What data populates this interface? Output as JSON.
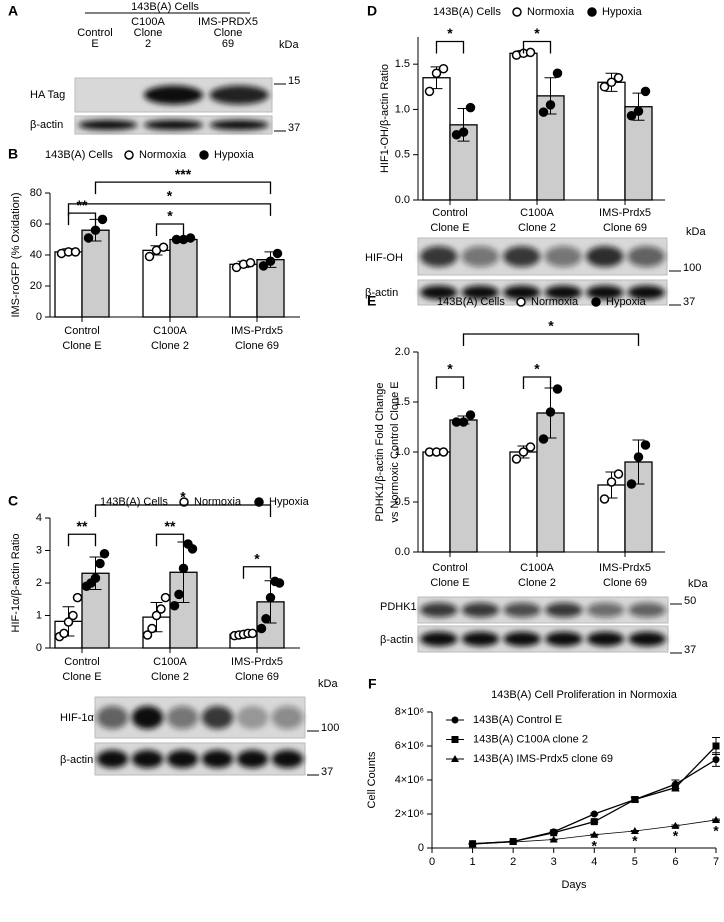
{
  "panel_labels": [
    "A",
    "B",
    "C",
    "D",
    "E",
    "F"
  ],
  "blots": [
    {
      "header": "143B(A) Cells",
      "columns": [
        [
          "Control",
          "E"
        ],
        [
          "C100A",
          "Clone",
          "2"
        ],
        [
          "IMS-PRDX5",
          "Clone",
          "69"
        ]
      ],
      "unit": "kDa",
      "rows": [
        "HA Tag",
        "β-actin"
      ],
      "markers": [
        "15",
        "37"
      ]
    },
    {
      "unit": "kDa",
      "rows": [
        "HIF-1α",
        "β-actin"
      ],
      "markers": [
        "100",
        "37"
      ]
    },
    {
      "unit": "kDa",
      "rows": [
        "HIF-OH",
        "β-actin"
      ],
      "markers": [
        "100",
        "37"
      ]
    },
    {
      "unit": "kDa",
      "rows": [
        "PDHK1",
        "β-actin"
      ],
      "markers": [
        "50",
        "37"
      ]
    }
  ],
  "chart_data": [
    {
      "type": "bar",
      "legend_title": "143B(A) Cells",
      "y_label": [
        "IMS-roGFP (% Oxidation)"
      ],
      "categories": [
        [
          "Control",
          "Clone E"
        ],
        [
          "C100A",
          "Clone 2"
        ],
        [
          "IMS-Prdx5",
          "Clone 69"
        ]
      ],
      "ylim": [
        0,
        80
      ],
      "yticks": [
        0,
        20,
        40,
        60,
        80
      ],
      "series": [
        {
          "name": "Normoxia",
          "color": "#ffffff",
          "point_color": "#ffffff",
          "values": [
            42,
            43,
            34
          ],
          "errors": [
            2,
            3,
            2
          ],
          "points": [
            [
              41,
              42,
              42
            ],
            [
              39,
              43,
              45
            ],
            [
              32,
              34,
              35
            ]
          ]
        },
        {
          "name": "Hypoxia",
          "color": "#cccccc",
          "point_color": "#000000",
          "values": [
            56,
            50,
            37
          ],
          "errors": [
            7,
            1,
            5
          ],
          "points": [
            [
              51,
              56,
              63
            ],
            [
              50,
              50,
              51
            ],
            [
              33,
              36,
              41
            ]
          ]
        }
      ],
      "annotations": [
        {
          "text": "**",
          "from": [
            0,
            0
          ],
          "to": [
            0,
            1
          ],
          "y": 67
        },
        {
          "text": "*",
          "from": [
            1,
            0
          ],
          "to": [
            1,
            1
          ],
          "y": 60
        },
        {
          "text": "*",
          "from": [
            0,
            0
          ],
          "to": [
            2,
            1
          ],
          "y": 73
        },
        {
          "text": "***",
          "from": [
            0,
            1
          ],
          "to": [
            2,
            1
          ],
          "y": 87
        }
      ]
    },
    {
      "type": "bar",
      "legend_title": "143B(A) Cells",
      "y_label": [
        "HIF-1α/β-actin Ratio"
      ],
      "categories": [
        [
          "Control",
          "Clone E"
        ],
        [
          "C100A",
          "Clone 2"
        ],
        [
          "IMS-Prdx5",
          "Clone 69"
        ]
      ],
      "ylim": [
        0,
        4
      ],
      "yticks": [
        0,
        1,
        2,
        3,
        4
      ],
      "series": [
        {
          "name": "Normoxia",
          "color": "#ffffff",
          "point_color": "#ffffff",
          "values": [
            0.82,
            0.95,
            0.42
          ],
          "errors": [
            0.45,
            0.45,
            0.08
          ],
          "points": [
            [
              0.35,
              0.45,
              0.8,
              1.0,
              1.55
            ],
            [
              0.4,
              0.6,
              1.0,
              1.2,
              1.55
            ],
            [
              0.38,
              0.4,
              0.42,
              0.45,
              0.45
            ]
          ]
        },
        {
          "name": "Hypoxia",
          "color": "#cccccc",
          "point_color": "#000000",
          "values": [
            2.3,
            2.33,
            1.42
          ],
          "errors": [
            0.5,
            0.93,
            0.65
          ],
          "points": [
            [
              1.9,
              2.0,
              2.15,
              2.6,
              2.9
            ],
            [
              1.3,
              1.65,
              2.45,
              3.2,
              3.05
            ],
            [
              0.6,
              0.9,
              1.55,
              2.05,
              2.0
            ]
          ]
        }
      ],
      "annotations": [
        {
          "text": "**",
          "from": [
            0,
            0
          ],
          "to": [
            0,
            1
          ],
          "y": 3.5
        },
        {
          "text": "**",
          "from": [
            1,
            0
          ],
          "to": [
            1,
            1
          ],
          "y": 3.5
        },
        {
          "text": "*",
          "from": [
            2,
            0
          ],
          "to": [
            2,
            1
          ],
          "y": 2.5
        },
        {
          "text": "*",
          "from": [
            0,
            1
          ],
          "to": [
            2,
            1
          ],
          "y": 4.4
        }
      ]
    },
    {
      "type": "bar",
      "legend_title": "143B(A) Cells",
      "y_label": [
        "HIF1-OH/β-actin Ratio"
      ],
      "categories": [
        [
          "Control",
          "Clone E"
        ],
        [
          "C100A",
          "Clone 2"
        ],
        [
          "IMS-Prdx5",
          "Clone 69"
        ]
      ],
      "ylim": [
        0,
        1.8
      ],
      "yticks": [
        {
          "value": 0,
          "label": "0.0"
        },
        0.5,
        {
          "value": 1,
          "label": "1.0"
        },
        1.5
      ],
      "series": [
        {
          "name": "Normoxia",
          "color": "#ffffff",
          "point_color": "#ffffff",
          "values": [
            1.35,
            1.62,
            1.3
          ],
          "errors": [
            0.12,
            0.03,
            0.1
          ],
          "points": [
            [
              1.2,
              1.4,
              1.45
            ],
            [
              1.6,
              1.62,
              1.63
            ],
            [
              1.25,
              1.3,
              1.35
            ]
          ]
        },
        {
          "name": "Hypoxia",
          "color": "#cccccc",
          "point_color": "#000000",
          "values": [
            0.83,
            1.15,
            1.03
          ],
          "errors": [
            0.18,
            0.2,
            0.15
          ],
          "points": [
            [
              0.72,
              0.75,
              1.02
            ],
            [
              0.97,
              1.05,
              1.4
            ],
            [
              0.93,
              0.98,
              1.2
            ]
          ]
        }
      ],
      "annotations": [
        {
          "text": "*",
          "from": [
            0,
            0
          ],
          "to": [
            0,
            1
          ],
          "y": 1.75
        },
        {
          "text": "*",
          "from": [
            1,
            0
          ],
          "to": [
            1,
            1
          ],
          "y": 1.75
        }
      ]
    },
    {
      "type": "bar",
      "legend_title": "143B(A) Cells",
      "y_label": [
        "PDHK1/β-actin Fold Change",
        "vs Normoxic Control Clone E"
      ],
      "categories": [
        [
          "Control",
          "Clone E"
        ],
        [
          "C100A",
          "Clone 2"
        ],
        [
          "IMS-Prdx5",
          "Clone 69"
        ]
      ],
      "ylim": [
        0,
        2
      ],
      "yticks": [
        {
          "value": 0,
          "label": "0.0"
        },
        0.5,
        {
          "value": 1,
          "label": "1.0"
        },
        1.5,
        {
          "value": 2,
          "label": "2.0"
        }
      ],
      "series": [
        {
          "name": "Normoxia",
          "color": "#ffffff",
          "point_color": "#ffffff",
          "values": [
            1.0,
            1.0,
            0.67
          ],
          "errors": [
            0.02,
            0.06,
            0.13
          ],
          "points": [
            [
              1.0,
              1.0,
              1.0
            ],
            [
              0.93,
              1.0,
              1.05
            ],
            [
              0.53,
              0.7,
              0.78
            ]
          ]
        },
        {
          "name": "Hypoxia",
          "color": "#cccccc",
          "point_color": "#000000",
          "values": [
            1.32,
            1.39,
            0.9
          ],
          "errors": [
            0.04,
            0.25,
            0.22
          ],
          "points": [
            [
              1.3,
              1.3,
              1.37
            ],
            [
              1.13,
              1.4,
              1.63
            ],
            [
              0.68,
              0.95,
              1.07
            ]
          ]
        }
      ],
      "annotations": [
        {
          "text": "*",
          "from": [
            0,
            0
          ],
          "to": [
            0,
            1
          ],
          "y": 1.75
        },
        {
          "text": "*",
          "from": [
            1,
            0
          ],
          "to": [
            1,
            1
          ],
          "y": 1.75
        },
        {
          "text": "*",
          "from": [
            0,
            1
          ],
          "to": [
            2,
            1
          ],
          "y": 2.18
        }
      ]
    },
    {
      "type": "line",
      "title": "143B(A) Cell Proliferation in Normoxia",
      "x_label": "Days",
      "y_label": [
        "Cell Counts"
      ],
      "x": [
        1,
        2,
        3,
        4,
        5,
        6,
        7
      ],
      "xlim": [
        0,
        7
      ],
      "xticks": [
        0,
        1,
        2,
        3,
        4,
        5,
        6,
        7
      ],
      "ylim": [
        0,
        8000000
      ],
      "yticks": [
        0,
        {
          "value": 2000000,
          "label": "2×10⁶"
        },
        {
          "value": 4000000,
          "label": "4×10⁶"
        },
        {
          "value": 6000000,
          "label": "6×10⁶"
        },
        {
          "value": 8000000,
          "label": "8×10⁶"
        }
      ],
      "series": [
        {
          "name": "143B(A) Control E",
          "color": "#000000",
          "marker": "circle",
          "values": [
            250000,
            380000,
            950000,
            2000000,
            2850000,
            3750000,
            5200000
          ],
          "errors": [
            20000,
            20000,
            50000,
            50000,
            150000,
            250000,
            400000
          ]
        },
        {
          "name": "143B(A) C100A clone 2",
          "color": "#000000",
          "marker": "square",
          "values": [
            250000,
            380000,
            900000,
            1550000,
            2850000,
            3550000,
            6000000
          ],
          "errors": [
            20000,
            20000,
            50000,
            50000,
            100000,
            200000,
            500000
          ]
        },
        {
          "name": "143B(A) IMS-Prdx5 clone 69",
          "color": "#000000",
          "marker": "triangle",
          "values": [
            220000,
            350000,
            500000,
            780000,
            1000000,
            1300000,
            1650000
          ],
          "errors": [
            10000,
            10000,
            20000,
            30000,
            30000,
            50000,
            50000
          ]
        }
      ],
      "annotations": [
        {
          "text": "*",
          "x": 4,
          "y": 300000
        },
        {
          "text": "*",
          "x": 5,
          "y": 600000
        },
        {
          "text": "*",
          "x": 6,
          "y": 900000
        },
        {
          "text": "*",
          "x": 7,
          "y": 1200000
        }
      ]
    }
  ]
}
